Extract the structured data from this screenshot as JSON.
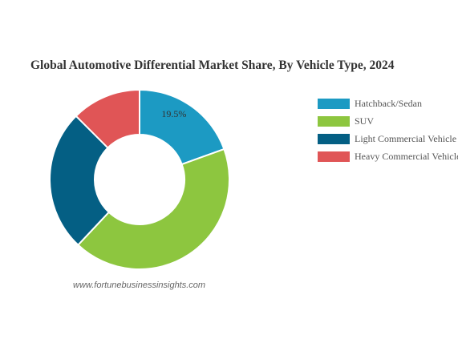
{
  "chart_data": {
    "type": "pie",
    "title": "Global Automotive Differential Market Share, By Vehicle Type, 2024",
    "categories": [
      "Hatchback/Sedan",
      "SUV",
      "Light Commercial Vehicle",
      "Heavy Commercial Vehicle"
    ],
    "values": [
      19.5,
      42.5,
      25.5,
      12.5
    ],
    "unit": "%",
    "colors": [
      "#1c9ac3",
      "#8dc63f",
      "#045f84",
      "#e05556"
    ],
    "data_labels": [
      {
        "category": "Hatchback/Sedan",
        "text": "19.5%"
      }
    ],
    "donut": true,
    "legend_position": "right",
    "source": "www.fortunebusinessinsights.com"
  }
}
